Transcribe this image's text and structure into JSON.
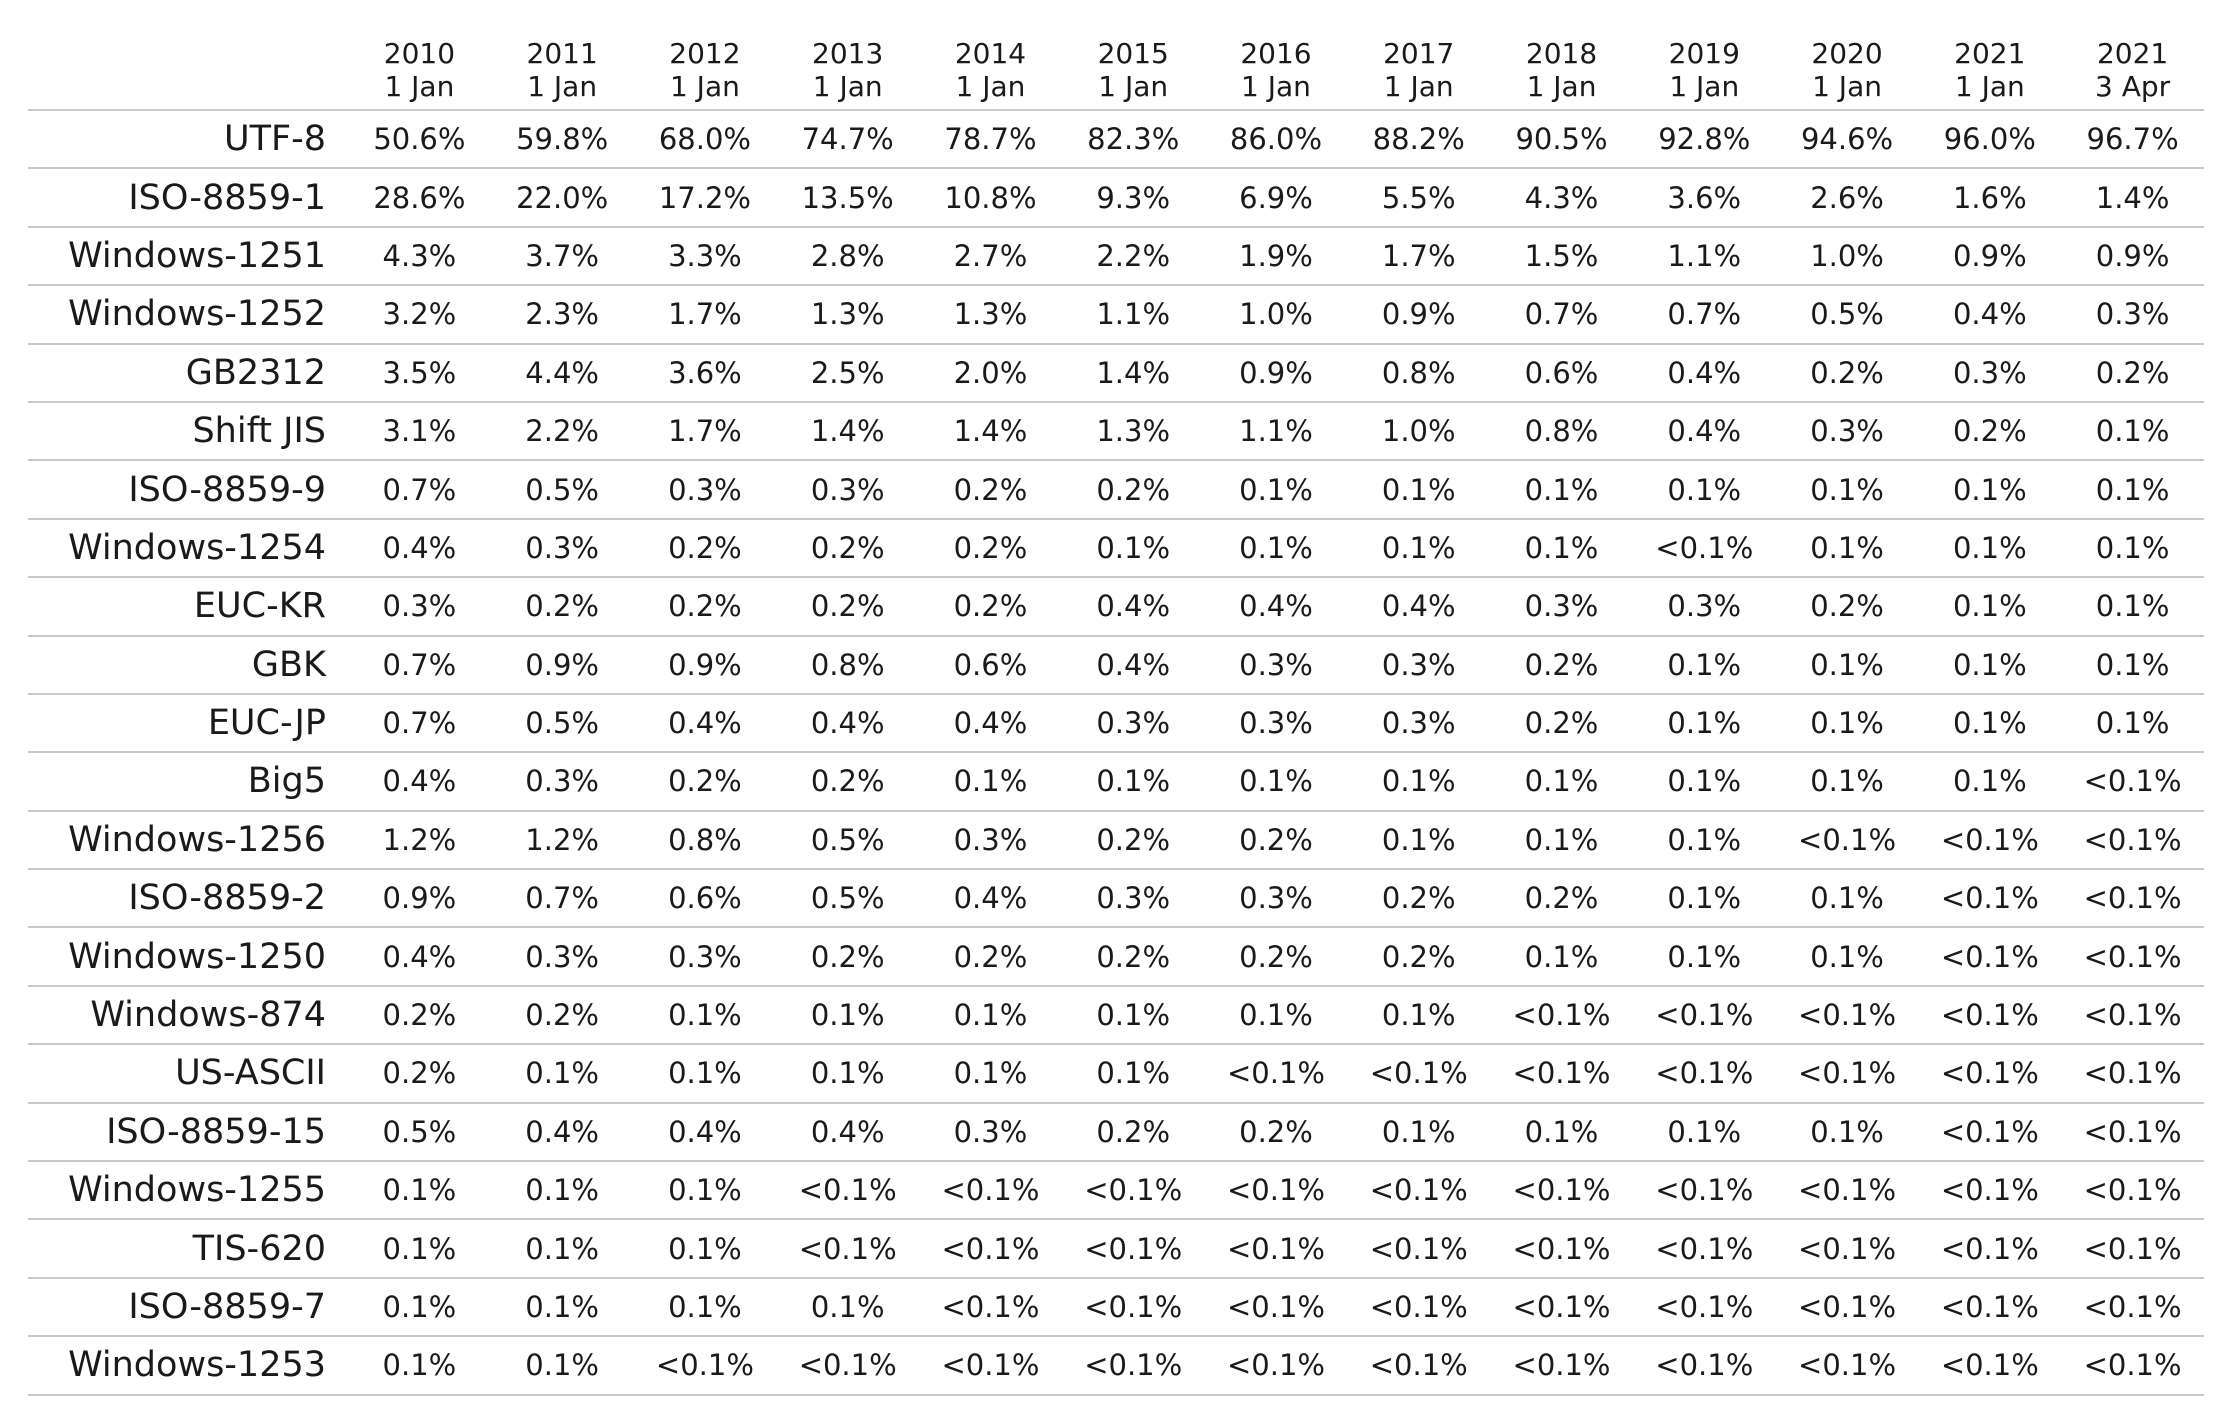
{
  "chart_data": {
    "type": "table",
    "columns": [
      {
        "year": "2010",
        "date": "1 Jan"
      },
      {
        "year": "2011",
        "date": "1 Jan"
      },
      {
        "year": "2012",
        "date": "1 Jan"
      },
      {
        "year": "2013",
        "date": "1 Jan"
      },
      {
        "year": "2014",
        "date": "1 Jan"
      },
      {
        "year": "2015",
        "date": "1 Jan"
      },
      {
        "year": "2016",
        "date": "1 Jan"
      },
      {
        "year": "2017",
        "date": "1 Jan"
      },
      {
        "year": "2018",
        "date": "1 Jan"
      },
      {
        "year": "2019",
        "date": "1 Jan"
      },
      {
        "year": "2020",
        "date": "1 Jan"
      },
      {
        "year": "2021",
        "date": "1 Jan"
      },
      {
        "year": "2021",
        "date": "3 Apr"
      }
    ],
    "rows": [
      {
        "label": "UTF-8",
        "values": [
          "50.6%",
          "59.8%",
          "68.0%",
          "74.7%",
          "78.7%",
          "82.3%",
          "86.0%",
          "88.2%",
          "90.5%",
          "92.8%",
          "94.6%",
          "96.0%",
          "96.7%"
        ]
      },
      {
        "label": "ISO-8859-1",
        "values": [
          "28.6%",
          "22.0%",
          "17.2%",
          "13.5%",
          "10.8%",
          "9.3%",
          "6.9%",
          "5.5%",
          "4.3%",
          "3.6%",
          "2.6%",
          "1.6%",
          "1.4%"
        ]
      },
      {
        "label": "Windows-1251",
        "values": [
          "4.3%",
          "3.7%",
          "3.3%",
          "2.8%",
          "2.7%",
          "2.2%",
          "1.9%",
          "1.7%",
          "1.5%",
          "1.1%",
          "1.0%",
          "0.9%",
          "0.9%"
        ]
      },
      {
        "label": "Windows-1252",
        "values": [
          "3.2%",
          "2.3%",
          "1.7%",
          "1.3%",
          "1.3%",
          "1.1%",
          "1.0%",
          "0.9%",
          "0.7%",
          "0.7%",
          "0.5%",
          "0.4%",
          "0.3%"
        ]
      },
      {
        "label": "GB2312",
        "values": [
          "3.5%",
          "4.4%",
          "3.6%",
          "2.5%",
          "2.0%",
          "1.4%",
          "0.9%",
          "0.8%",
          "0.6%",
          "0.4%",
          "0.2%",
          "0.3%",
          "0.2%"
        ]
      },
      {
        "label": "Shift JIS",
        "values": [
          "3.1%",
          "2.2%",
          "1.7%",
          "1.4%",
          "1.4%",
          "1.3%",
          "1.1%",
          "1.0%",
          "0.8%",
          "0.4%",
          "0.3%",
          "0.2%",
          "0.1%"
        ]
      },
      {
        "label": "ISO-8859-9",
        "values": [
          "0.7%",
          "0.5%",
          "0.3%",
          "0.3%",
          "0.2%",
          "0.2%",
          "0.1%",
          "0.1%",
          "0.1%",
          "0.1%",
          "0.1%",
          "0.1%",
          "0.1%"
        ]
      },
      {
        "label": "Windows-1254",
        "values": [
          "0.4%",
          "0.3%",
          "0.2%",
          "0.2%",
          "0.2%",
          "0.1%",
          "0.1%",
          "0.1%",
          "0.1%",
          "<0.1%",
          "0.1%",
          "0.1%",
          "0.1%"
        ]
      },
      {
        "label": "EUC-KR",
        "values": [
          "0.3%",
          "0.2%",
          "0.2%",
          "0.2%",
          "0.2%",
          "0.4%",
          "0.4%",
          "0.4%",
          "0.3%",
          "0.3%",
          "0.2%",
          "0.1%",
          "0.1%"
        ]
      },
      {
        "label": "GBK",
        "values": [
          "0.7%",
          "0.9%",
          "0.9%",
          "0.8%",
          "0.6%",
          "0.4%",
          "0.3%",
          "0.3%",
          "0.2%",
          "0.1%",
          "0.1%",
          "0.1%",
          "0.1%"
        ]
      },
      {
        "label": "EUC-JP",
        "values": [
          "0.7%",
          "0.5%",
          "0.4%",
          "0.4%",
          "0.4%",
          "0.3%",
          "0.3%",
          "0.3%",
          "0.2%",
          "0.1%",
          "0.1%",
          "0.1%",
          "0.1%"
        ]
      },
      {
        "label": "Big5",
        "values": [
          "0.4%",
          "0.3%",
          "0.2%",
          "0.2%",
          "0.1%",
          "0.1%",
          "0.1%",
          "0.1%",
          "0.1%",
          "0.1%",
          "0.1%",
          "0.1%",
          "<0.1%"
        ]
      },
      {
        "label": "Windows-1256",
        "values": [
          "1.2%",
          "1.2%",
          "0.8%",
          "0.5%",
          "0.3%",
          "0.2%",
          "0.2%",
          "0.1%",
          "0.1%",
          "0.1%",
          "<0.1%",
          "<0.1%",
          "<0.1%"
        ]
      },
      {
        "label": "ISO-8859-2",
        "values": [
          "0.9%",
          "0.7%",
          "0.6%",
          "0.5%",
          "0.4%",
          "0.3%",
          "0.3%",
          "0.2%",
          "0.2%",
          "0.1%",
          "0.1%",
          "<0.1%",
          "<0.1%"
        ]
      },
      {
        "label": "Windows-1250",
        "values": [
          "0.4%",
          "0.3%",
          "0.3%",
          "0.2%",
          "0.2%",
          "0.2%",
          "0.2%",
          "0.2%",
          "0.1%",
          "0.1%",
          "0.1%",
          "<0.1%",
          "<0.1%"
        ]
      },
      {
        "label": "Windows-874",
        "values": [
          "0.2%",
          "0.2%",
          "0.1%",
          "0.1%",
          "0.1%",
          "0.1%",
          "0.1%",
          "0.1%",
          "<0.1%",
          "<0.1%",
          "<0.1%",
          "<0.1%",
          "<0.1%"
        ]
      },
      {
        "label": "US-ASCII",
        "values": [
          "0.2%",
          "0.1%",
          "0.1%",
          "0.1%",
          "0.1%",
          "0.1%",
          "<0.1%",
          "<0.1%",
          "<0.1%",
          "<0.1%",
          "<0.1%",
          "<0.1%",
          "<0.1%"
        ]
      },
      {
        "label": "ISO-8859-15",
        "values": [
          "0.5%",
          "0.4%",
          "0.4%",
          "0.4%",
          "0.3%",
          "0.2%",
          "0.2%",
          "0.1%",
          "0.1%",
          "0.1%",
          "0.1%",
          "<0.1%",
          "<0.1%"
        ]
      },
      {
        "label": "Windows-1255",
        "values": [
          "0.1%",
          "0.1%",
          "0.1%",
          "<0.1%",
          "<0.1%",
          "<0.1%",
          "<0.1%",
          "<0.1%",
          "<0.1%",
          "<0.1%",
          "<0.1%",
          "<0.1%",
          "<0.1%"
        ]
      },
      {
        "label": "TIS-620",
        "values": [
          "0.1%",
          "0.1%",
          "0.1%",
          "<0.1%",
          "<0.1%",
          "<0.1%",
          "<0.1%",
          "<0.1%",
          "<0.1%",
          "<0.1%",
          "<0.1%",
          "<0.1%",
          "<0.1%"
        ]
      },
      {
        "label": "ISO-8859-7",
        "values": [
          "0.1%",
          "0.1%",
          "0.1%",
          "0.1%",
          "<0.1%",
          "<0.1%",
          "<0.1%",
          "<0.1%",
          "<0.1%",
          "<0.1%",
          "<0.1%",
          "<0.1%",
          "<0.1%"
        ]
      },
      {
        "label": "Windows-1253",
        "values": [
          "0.1%",
          "0.1%",
          "<0.1%",
          "<0.1%",
          "<0.1%",
          "<0.1%",
          "<0.1%",
          "<0.1%",
          "<0.1%",
          "<0.1%",
          "<0.1%",
          "<0.1%",
          "<0.1%"
        ]
      }
    ]
  }
}
